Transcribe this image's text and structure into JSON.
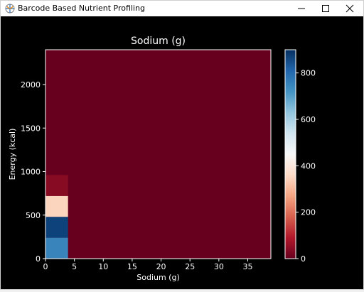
{
  "window": {
    "title": "Barcode Based Nutrient Profiling",
    "icons": {
      "app": "plot-app-icon",
      "minimize": "minimize-icon",
      "maximize": "maximize-icon",
      "close": "close-icon"
    }
  },
  "chart_data": {
    "type": "heatmap",
    "title": "Sodium (g)",
    "xlabel": "Sodium (g)",
    "ylabel": "Energy (kcal)",
    "xlim": [
      0,
      39
    ],
    "ylim": [
      0,
      2400
    ],
    "x_ticks": [
      0,
      5,
      10,
      15,
      20,
      25,
      30,
      35
    ],
    "y_ticks": [
      0,
      500,
      1000,
      1500,
      2000
    ],
    "bin_width_x": 3.9,
    "bin_height_y": 240,
    "background_count": 0,
    "cells": [
      {
        "x": [
          0,
          3.9
        ],
        "y": [
          0,
          240
        ],
        "count": 750
      },
      {
        "x": [
          0,
          3.9
        ],
        "y": [
          240,
          480
        ],
        "count": 870
      },
      {
        "x": [
          0,
          3.9
        ],
        "y": [
          480,
          720
        ],
        "count": 350
      },
      {
        "x": [
          0,
          3.9
        ],
        "y": [
          720,
          960
        ],
        "count": 40
      }
    ],
    "colorbar": {
      "cmap": "RdBu",
      "range": [
        0,
        900
      ],
      "ticks": [
        0,
        200,
        400,
        600,
        800
      ],
      "colors": [
        "#67001f",
        "#b2182b",
        "#d6604d",
        "#f4a582",
        "#fddbc7",
        "#f7f7f7",
        "#d1e5f0",
        "#92c5de",
        "#4393c3",
        "#2166ac",
        "#053061"
      ]
    },
    "style": {
      "background": "#000000",
      "foreground": "#ffffff"
    }
  }
}
